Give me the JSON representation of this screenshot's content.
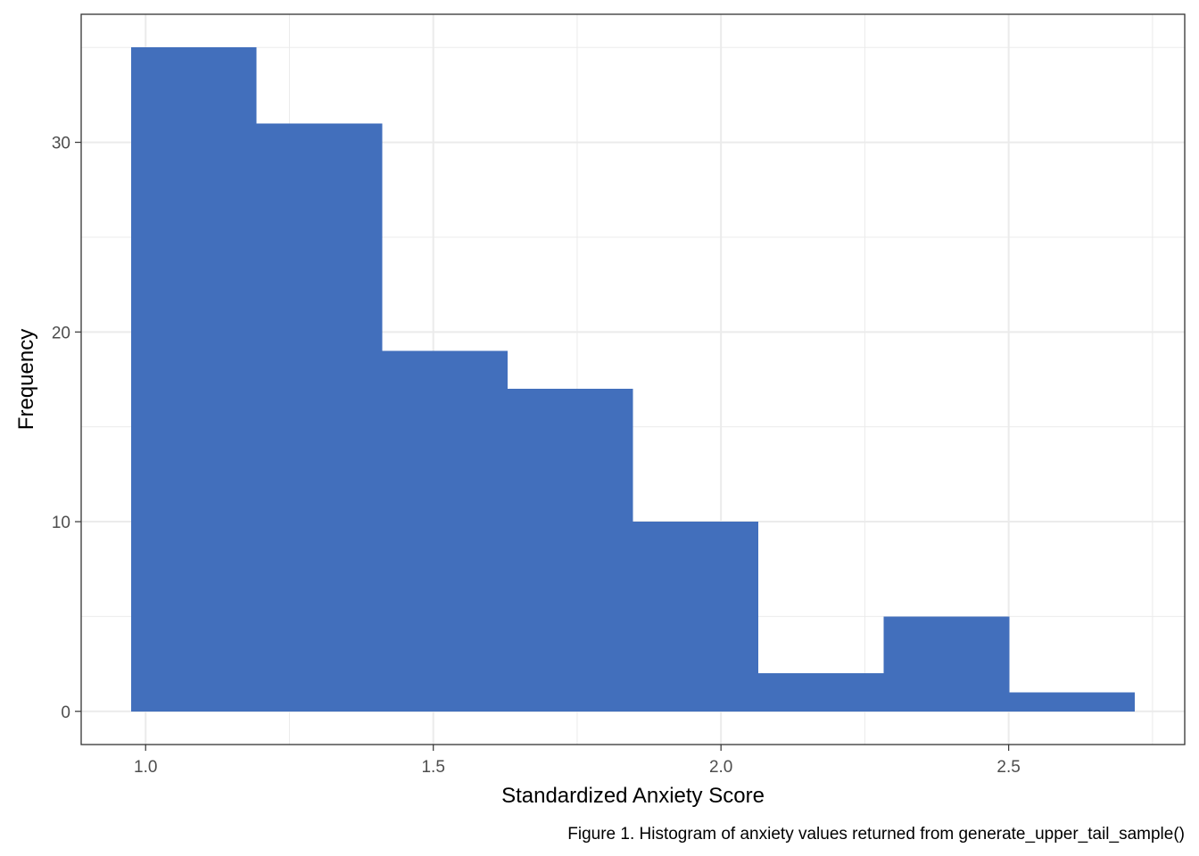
{
  "chart_data": {
    "type": "bar",
    "subtype": "histogram",
    "bins": [
      {
        "x0": 0.975,
        "x1": 1.193,
        "count": 35
      },
      {
        "x0": 1.193,
        "x1": 1.411,
        "count": 31
      },
      {
        "x0": 1.411,
        "x1": 1.629,
        "count": 19
      },
      {
        "x0": 1.629,
        "x1": 1.847,
        "count": 17
      },
      {
        "x0": 1.847,
        "x1": 2.065,
        "count": 10
      },
      {
        "x0": 2.065,
        "x1": 2.283,
        "count": 2
      },
      {
        "x0": 2.283,
        "x1": 2.501,
        "count": 5
      },
      {
        "x0": 2.501,
        "x1": 2.719,
        "count": 1
      }
    ],
    "xlabel": "Standardized Anxiety Score",
    "ylabel": "Frequency",
    "caption": "Figure 1. Histogram of anxiety values returned from generate_upper_tail_sample()",
    "xlim": [
      0.888,
      2.806
    ],
    "ylim": [
      -1.75,
      36.75
    ],
    "x_ticks": [
      1.0,
      1.5,
      2.0,
      2.5
    ],
    "x_tick_labels": [
      "1.0",
      "1.5",
      "2.0",
      "2.5"
    ],
    "x_minor_ticks": [
      1.25,
      1.75,
      2.25,
      2.75
    ],
    "y_ticks": [
      0,
      10,
      20,
      30
    ],
    "y_tick_labels": [
      "0",
      "10",
      "20",
      "30"
    ],
    "y_minor_ticks": [
      5,
      15,
      25,
      35
    ],
    "grid": true,
    "legend": "none",
    "bar_color": "#426fbc",
    "panel_border_color": "#333333",
    "grid_color": "#ebebeb"
  }
}
